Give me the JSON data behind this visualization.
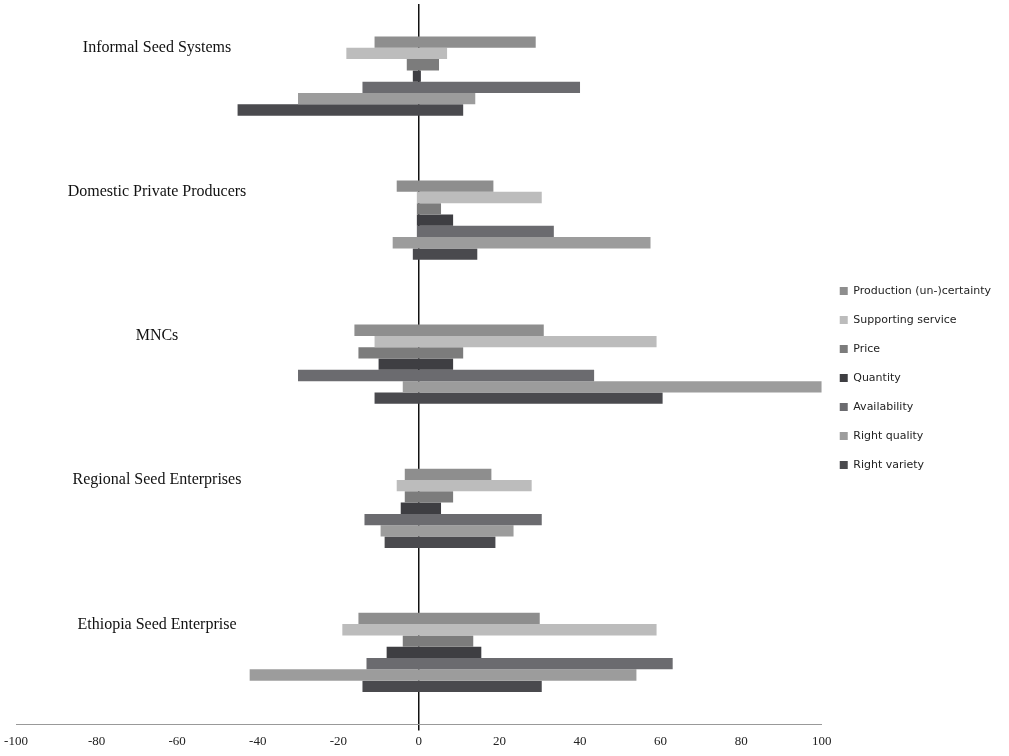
{
  "chart_data": {
    "type": "bar",
    "orientation": "horizontal",
    "categories": [
      "Informal Seed Systems",
      "Domestic Private Producers",
      "MNCs",
      "Regional Seed Enterprises",
      "Ethiopia Seed Enterprise"
    ],
    "series": [
      {
        "name": "Production (un-)certainty",
        "color": "#8e8e8e",
        "base": [
          -11,
          -5.5,
          -16,
          -3.5,
          -15
        ],
        "values": [
          40,
          24,
          47,
          21.5,
          45
        ]
      },
      {
        "name": "Supporting service",
        "color": "#bcbcbc",
        "base": [
          -18,
          -0.5,
          -11,
          -5.5,
          -19
        ],
        "values": [
          25,
          31,
          70,
          33.5,
          78
        ]
      },
      {
        "name": "Price",
        "color": "#7c7c7c",
        "base": [
          -3,
          -0.5,
          -15,
          -3.5,
          -4
        ],
        "values": [
          8,
          6,
          26,
          12,
          17.5
        ]
      },
      {
        "name": "Quantity",
        "color": "#3e3e42",
        "base": [
          -1.5,
          -0.5,
          -10,
          -4.5,
          -8
        ],
        "values": [
          2,
          9,
          18.5,
          10,
          23.5
        ]
      },
      {
        "name": "Availability",
        "color": "#6b6b6f",
        "base": [
          -14,
          -0.5,
          -30,
          -13.5,
          -13
        ],
        "values": [
          54,
          34,
          73.5,
          44,
          76
        ]
      },
      {
        "name": "Right quality",
        "color": "#9c9c9c",
        "base": [
          -30,
          -6.5,
          -4,
          -9.5,
          -42
        ],
        "values": [
          44,
          64,
          104,
          33,
          96
        ]
      },
      {
        "name": "Right variety",
        "color": "#4a4a4e",
        "base": [
          -45,
          -1.5,
          -11,
          -8.5,
          -14
        ],
        "values": [
          56,
          16,
          71.5,
          27.5,
          44.5
        ]
      }
    ],
    "xlim": [
      -100,
      100
    ],
    "xticks": [
      -100,
      -80,
      -60,
      -40,
      -20,
      0,
      20,
      40,
      60,
      80,
      100
    ],
    "legend": "right"
  }
}
